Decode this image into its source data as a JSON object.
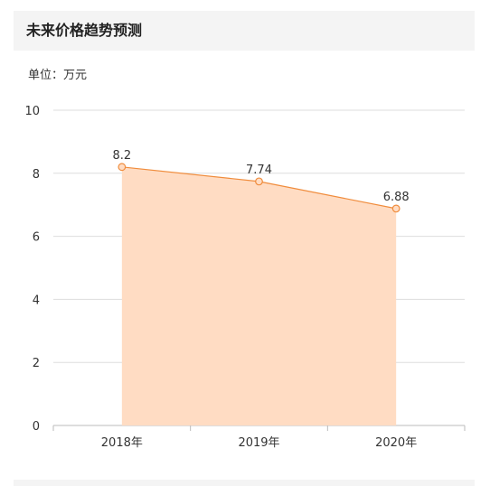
{
  "header": {
    "title": "未来价格趋势预测"
  },
  "unit_label": "单位：万元",
  "chart_data": {
    "type": "area",
    "categories": [
      "2018年",
      "2019年",
      "2020年"
    ],
    "series": [
      {
        "values": [
          8.2,
          7.74,
          6.88
        ]
      }
    ],
    "data_labels": [
      "8.2",
      "7.74",
      "6.88"
    ],
    "ylim": [
      0,
      10
    ],
    "yticks": [
      "0",
      "2",
      "4",
      "6",
      "8",
      "10"
    ],
    "grid": true,
    "colors": {
      "line": "#f08c3c",
      "fill": "#ffdcc3",
      "grid": "#dddddd",
      "axis": "#bbbbbb"
    }
  }
}
